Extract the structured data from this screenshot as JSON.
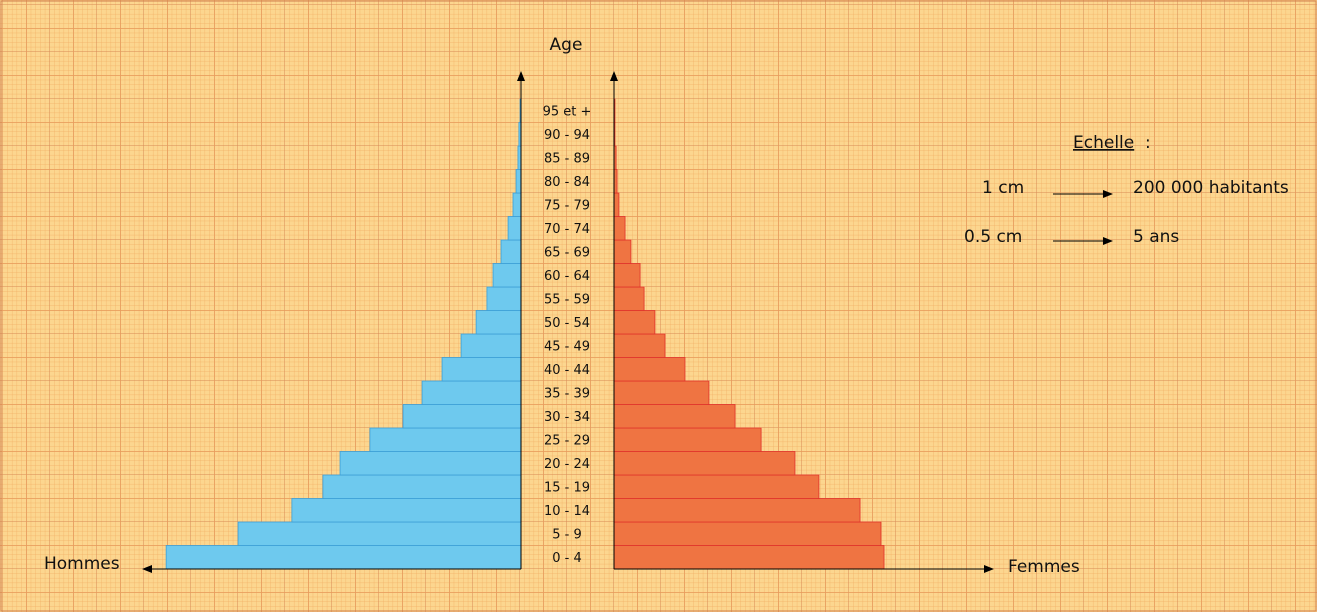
{
  "chart_data": {
    "type": "pyramid",
    "y_label": "Age",
    "categories": [
      "0 - 4",
      "5 - 9",
      "10 - 14",
      "15 - 19",
      "20 - 24",
      "25 - 29",
      "30 - 34",
      "35 - 39",
      "40 - 44",
      "45 - 49",
      "50 - 54",
      "55 - 59",
      "60 - 64",
      "65 - 69",
      "70 - 74",
      "75 - 79",
      "80 - 84",
      "85 - 89",
      "90 - 94",
      "95 et +"
    ],
    "series": [
      {
        "name": "Hommes",
        "color": "#6ec9ee",
        "values": [
          1510000,
          1204000,
          975000,
          843000,
          770000,
          643000,
          502000,
          421000,
          336000,
          255000,
          191000,
          145000,
          119000,
          85000,
          55000,
          34000,
          21000,
          13000,
          9000,
          4000
        ]
      },
      {
        "name": "Femmes",
        "color": "#ef7442",
        "values": [
          1149000,
          1136000,
          1047000,
          872000,
          770000,
          626000,
          515000,
          404000,
          302000,
          217000,
          174000,
          128000,
          111000,
          72000,
          47000,
          21000,
          13000,
          9000,
          4000,
          4000
        ]
      }
    ],
    "xlim": [
      0,
      2000000
    ],
    "scale": {
      "title": "Echelle",
      "separator": ":",
      "rows": [
        {
          "left": "1 cm",
          "right": "200 000 habitants"
        },
        {
          "left": "0.5 cm",
          "right": "5 ans"
        }
      ]
    }
  }
}
